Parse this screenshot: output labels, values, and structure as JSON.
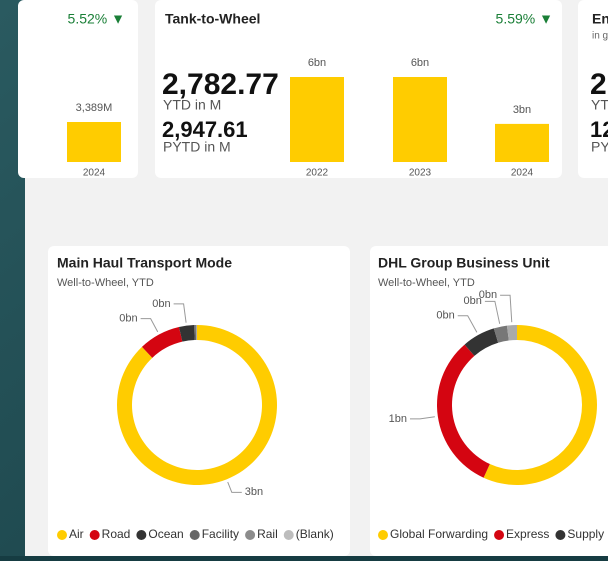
{
  "cards": [
    {
      "change": "5.52% ▼",
      "bars": [
        {
          "category": "2024",
          "value": 3389,
          "value_label": "3,389M"
        }
      ]
    },
    {
      "title": "Tank-to-Wheel",
      "change": "5.59% ▼",
      "ytd": "2,782.77",
      "ytd_label": "YTD in M",
      "pytd": "2,947.61",
      "pytd_label": "PYTD in M",
      "bars": [
        {
          "category": "2022",
          "value": 6.2,
          "value_label": "6bn"
        },
        {
          "category": "2023",
          "value": 6.2,
          "value_label": "6bn"
        },
        {
          "category": "2024",
          "value": 2.78,
          "value_label": "3bn"
        }
      ]
    },
    {
      "title": "En",
      "subtitle": "in g",
      "ytd": "2",
      "ytd_label": "YT",
      "pytd": "12",
      "pytd_label": "PY"
    }
  ],
  "donuts": [
    {
      "title": "Main Haul Transport Mode",
      "subtitle": "Well-to-Wheel, YTD",
      "segments": [
        {
          "name": "Air",
          "value": 2.6,
          "value_label": "3bn",
          "color": "#ffcc00"
        },
        {
          "name": "Road",
          "value": 0.25,
          "value_label": "0bn",
          "color": "#d40511"
        },
        {
          "name": "Ocean",
          "value": 0.09,
          "value_label": "0bn",
          "color": "#333333"
        },
        {
          "name": "Facility",
          "value": 0.01,
          "color": "#666666"
        },
        {
          "name": "Rail",
          "value": 0.005,
          "color": "#8c8c8c"
        },
        {
          "name": "(Blank)",
          "value": 0.002,
          "color": "#bdbdbd"
        }
      ]
    },
    {
      "title": "DHL Group Business Unit",
      "subtitle": "Well-to-Wheel, YTD",
      "segments": [
        {
          "name": "Global Forwarding",
          "value": 1.7,
          "color": "#ffcc00"
        },
        {
          "name": "Express",
          "value": 0.95,
          "value_label": "1bn",
          "color": "#d40511"
        },
        {
          "name": "Supply",
          "value": 0.2,
          "value_label": "0bn",
          "color": "#333333"
        },
        {
          "value": 0.08,
          "value_label": "0bn",
          "color": "#777777"
        },
        {
          "value": 0.06,
          "value_label": "0bn",
          "color": "#aaaaaa"
        }
      ]
    }
  ]
}
